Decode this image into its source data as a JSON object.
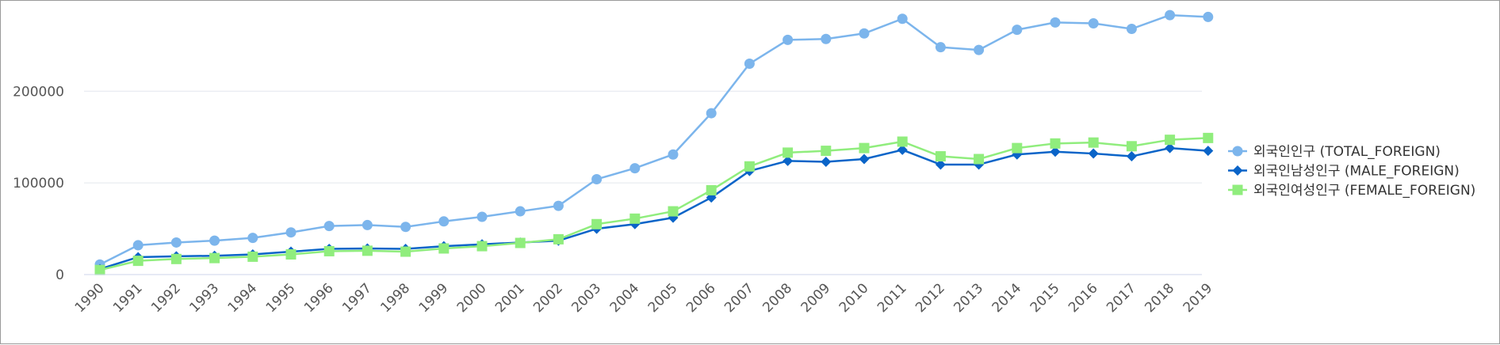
{
  "chart_data": {
    "type": "line",
    "title": "",
    "xlabel": "",
    "ylabel": "",
    "x": [
      1990,
      1991,
      1992,
      1993,
      1994,
      1995,
      1996,
      1997,
      1998,
      1999,
      2000,
      2001,
      2002,
      2003,
      2004,
      2005,
      2006,
      2007,
      2008,
      2009,
      2010,
      2011,
      2012,
      2013,
      2014,
      2015,
      2016,
      2017,
      2018,
      2019
    ],
    "x_tick_labels": [
      "1990",
      "1991",
      "1992",
      "1993",
      "1994",
      "1995",
      "1996",
      "1997",
      "1998",
      "1999",
      "2000",
      "2001",
      "2002",
      "2003",
      "2004",
      "2005",
      "2006",
      "2007",
      "2008",
      "2009",
      "2010",
      "2011",
      "2012",
      "2013",
      "2014",
      "2015",
      "2016",
      "2017",
      "2018",
      "2019"
    ],
    "ylim": [
      0,
      290000
    ],
    "y_ticks": [
      0,
      100000,
      200000
    ],
    "y_tick_labels": [
      "0",
      "100000",
      "200000"
    ],
    "grid": true,
    "legend_position": "right",
    "series": [
      {
        "name": "외국인인구 (TOTAL_FOREIGN)",
        "color": "#7cb5ec",
        "marker": "circle",
        "values": [
          11000,
          32000,
          35000,
          37000,
          40000,
          46000,
          53000,
          54000,
          52000,
          58000,
          63000,
          69000,
          75000,
          104000,
          116000,
          131000,
          176000,
          230000,
          256000,
          257000,
          263000,
          279000,
          248000,
          245000,
          267000,
          275000,
          274000,
          268000,
          283000,
          281000
        ]
      },
      {
        "name": "외국인남성인구 (MALE_FOREIGN)",
        "color": "#0a64c8",
        "marker": "diamond",
        "values": [
          6000,
          19000,
          20000,
          20500,
          22000,
          25000,
          28000,
          28500,
          28000,
          31000,
          33000,
          35000,
          37000,
          50000,
          55000,
          62000,
          84000,
          113000,
          124000,
          123000,
          126000,
          136000,
          120000,
          120000,
          131000,
          134000,
          132000,
          129000,
          138000,
          135000
        ]
      },
      {
        "name": "외국인여성인구 (FEMALE_FOREIGN)",
        "color": "#90ed7d",
        "marker": "square",
        "values": [
          5000,
          15000,
          17000,
          18000,
          19500,
          22000,
          25500,
          26000,
          25000,
          28500,
          31000,
          34500,
          38500,
          55000,
          61000,
          69000,
          92000,
          118000,
          133000,
          135000,
          138000,
          145000,
          129000,
          126000,
          138000,
          143000,
          144000,
          140000,
          147000,
          149000
        ]
      }
    ]
  }
}
